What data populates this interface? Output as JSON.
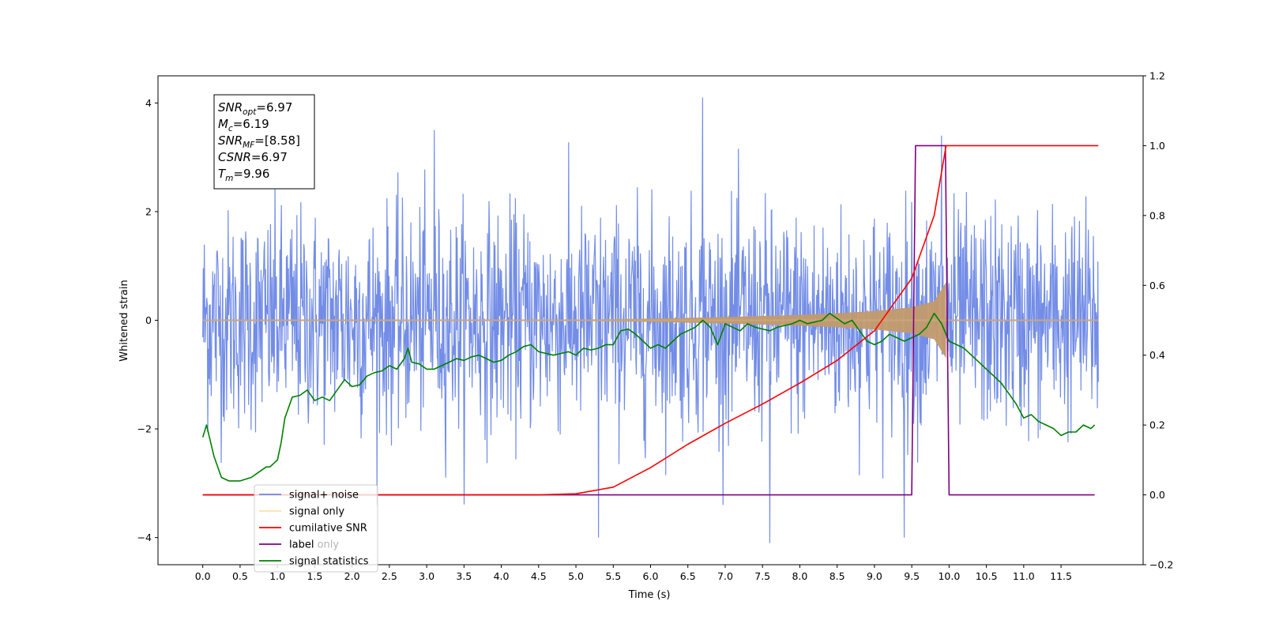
{
  "chart_data": {
    "type": "line",
    "xlabel": "Time (s)",
    "ylabel": "Whitened strain",
    "xlim": [
      -0.6,
      12.6
    ],
    "ylim": [
      -4.5,
      4.5
    ],
    "y2lim": [
      -0.2,
      1.2
    ],
    "x_ticks": [
      "0.0",
      "0.5",
      "1.0",
      "1.5",
      "2.0",
      "2.5",
      "3.0",
      "3.5",
      "4.0",
      "4.5",
      "5.0",
      "5.5",
      "6.0",
      "6.5",
      "7.0",
      "7.5",
      "8.0",
      "8.5",
      "9.0",
      "9.5",
      "10.0",
      "10.5",
      "11.0",
      "11.5"
    ],
    "y_ticks": [
      "4",
      "2",
      "0",
      "−2",
      "−4"
    ],
    "y_tick_values": [
      4,
      2,
      0,
      -2,
      -4
    ],
    "y2_ticks": [
      "1.2",
      "1.0",
      "0.8",
      "0.6",
      "0.4",
      "0.2",
      "0.0",
      "−0.2"
    ],
    "y2_tick_values": [
      1.2,
      1.0,
      0.8,
      0.6,
      0.4,
      0.2,
      0.0,
      -0.2
    ],
    "legend_position": "lower-left",
    "legend": [
      {
        "name": "signal+ noise",
        "color": "#6b87e6"
      },
      {
        "name": "signal only",
        "color": "#ffbf50"
      },
      {
        "name": "cumilative SNR",
        "color": "#ff0000"
      },
      {
        "name": "label",
        "color": "#800080"
      },
      {
        "name": "label only",
        "color": "#800080"
      },
      {
        "name": "signal statistics",
        "color": "#008000"
      }
    ],
    "annotation": [
      {
        "name": "SNR",
        "sub": "opt",
        "value": "=6.97"
      },
      {
        "name": "M",
        "sub": "c",
        "value": "=6.19"
      },
      {
        "name": "SNR",
        "sub": "MF",
        "value": "=[8.58]"
      },
      {
        "name": "CSNR",
        "sub": "",
        "value": "=6.97"
      },
      {
        "name": "T",
        "sub": "m",
        "value": "=9.96"
      }
    ],
    "series": [
      {
        "name": "signal+ noise",
        "axis": "left",
        "description": "whitened noisy strain sampled over 0-12 s, amplitude mostly within ±2.5 with peaks to ±4",
        "x_range": [
          0.0,
          12.0
        ],
        "std": 1.0,
        "peaks": [
          [
            6.7,
            4.1
          ],
          [
            7.6,
            -4.1
          ],
          [
            5.3,
            -4.0
          ],
          [
            9.4,
            -4.0
          ],
          [
            3.1,
            3.5
          ],
          [
            9.9,
            3.4
          ]
        ]
      },
      {
        "name": "signal only",
        "axis": "left",
        "description": "chirp signal growing in amplitude until merger at 9.96 s",
        "x_range": [
          0.0,
          12.0
        ],
        "merger_time": 9.96,
        "envelope": {
          "x": [
            0.0,
            4.0,
            5.0,
            6.0,
            7.0,
            8.0,
            8.5,
            9.0,
            9.5,
            9.8,
            9.96
          ],
          "y": [
            0.0,
            0.004,
            0.012,
            0.03,
            0.06,
            0.1,
            0.13,
            0.17,
            0.24,
            0.35,
            0.7
          ]
        }
      },
      {
        "name": "cumilative SNR",
        "axis": "right",
        "x": [
          0.0,
          4.5,
          5.0,
          5.5,
          6.0,
          6.5,
          7.0,
          7.5,
          8.0,
          8.5,
          9.0,
          9.5,
          9.8,
          9.96,
          10.0,
          12.0
        ],
        "y": [
          0.0,
          0.0,
          0.003,
          0.022,
          0.078,
          0.145,
          0.205,
          0.26,
          0.32,
          0.385,
          0.47,
          0.62,
          0.8,
          1.0,
          1.0,
          1.0
        ]
      },
      {
        "name": "label",
        "axis": "right",
        "x": [
          0.0,
          9.5,
          9.55,
          9.95,
          10.0,
          11.95
        ],
        "y": [
          0.0,
          0.0,
          1.0,
          1.0,
          0.0,
          0.0
        ]
      },
      {
        "name": "signal statistics",
        "axis": "right",
        "x": [
          0.0,
          0.05,
          0.15,
          0.25,
          0.35,
          0.5,
          0.65,
          0.75,
          0.85,
          0.9,
          0.95,
          1.0,
          1.05,
          1.1,
          1.2,
          1.3,
          1.4,
          1.5,
          1.6,
          1.7,
          1.8,
          1.9,
          2.0,
          2.1,
          2.2,
          2.3,
          2.4,
          2.5,
          2.6,
          2.7,
          2.75,
          2.8,
          2.9,
          3.0,
          3.1,
          3.2,
          3.3,
          3.4,
          3.5,
          3.6,
          3.7,
          3.8,
          3.9,
          4.0,
          4.1,
          4.2,
          4.3,
          4.4,
          4.5,
          4.6,
          4.7,
          4.8,
          4.9,
          5.0,
          5.1,
          5.2,
          5.3,
          5.4,
          5.5,
          5.6,
          5.7,
          5.8,
          5.9,
          6.0,
          6.1,
          6.2,
          6.3,
          6.4,
          6.5,
          6.6,
          6.7,
          6.8,
          6.9,
          7.0,
          7.1,
          7.2,
          7.3,
          7.4,
          7.5,
          7.6,
          7.7,
          7.8,
          7.9,
          8.0,
          8.1,
          8.2,
          8.3,
          8.4,
          8.5,
          8.6,
          8.7,
          8.8,
          8.9,
          9.0,
          9.1,
          9.2,
          9.3,
          9.4,
          9.5,
          9.6,
          9.7,
          9.8,
          9.9,
          10.0,
          10.1,
          10.2,
          10.3,
          10.4,
          10.5,
          10.6,
          10.7,
          10.8,
          10.9,
          11.0,
          11.1,
          11.2,
          11.3,
          11.4,
          11.5,
          11.6,
          11.7,
          11.8,
          11.9,
          11.95
        ],
        "y": [
          0.165,
          0.2,
          0.11,
          0.05,
          0.04,
          0.04,
          0.05,
          0.065,
          0.08,
          0.08,
          0.09,
          0.1,
          0.15,
          0.22,
          0.28,
          0.285,
          0.3,
          0.27,
          0.28,
          0.27,
          0.3,
          0.33,
          0.31,
          0.315,
          0.34,
          0.35,
          0.355,
          0.37,
          0.36,
          0.39,
          0.42,
          0.38,
          0.375,
          0.36,
          0.36,
          0.37,
          0.38,
          0.39,
          0.385,
          0.395,
          0.4,
          0.39,
          0.38,
          0.385,
          0.4,
          0.41,
          0.425,
          0.43,
          0.41,
          0.405,
          0.4,
          0.405,
          0.41,
          0.4,
          0.42,
          0.415,
          0.42,
          0.43,
          0.43,
          0.47,
          0.475,
          0.46,
          0.44,
          0.42,
          0.43,
          0.42,
          0.44,
          0.46,
          0.47,
          0.48,
          0.5,
          0.48,
          0.43,
          0.49,
          0.48,
          0.47,
          0.49,
          0.48,
          0.475,
          0.47,
          0.48,
          0.485,
          0.49,
          0.5,
          0.49,
          0.495,
          0.5,
          0.52,
          0.505,
          0.49,
          0.5,
          0.47,
          0.44,
          0.43,
          0.44,
          0.46,
          0.45,
          0.44,
          0.45,
          0.46,
          0.48,
          0.52,
          0.49,
          0.44,
          0.43,
          0.42,
          0.4,
          0.38,
          0.36,
          0.34,
          0.32,
          0.29,
          0.26,
          0.22,
          0.23,
          0.21,
          0.2,
          0.19,
          0.17,
          0.18,
          0.18,
          0.2,
          0.19,
          0.2
        ]
      }
    ]
  }
}
